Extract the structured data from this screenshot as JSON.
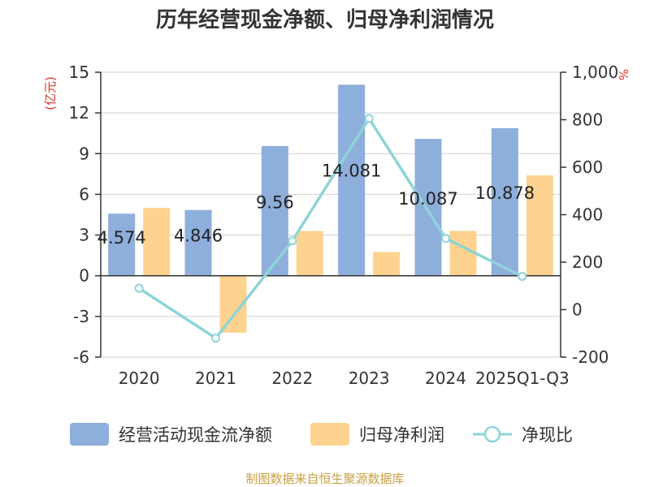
{
  "chart_data": {
    "type": "bar",
    "title": "历年经营现金净额、归母净利润情况",
    "categories": [
      "2020",
      "2021",
      "2022",
      "2023",
      "2024",
      "2025Q1-Q3"
    ],
    "series": [
      {
        "name": "经营活动现金流净额",
        "axis": "left",
        "color": "#8eaedb",
        "values": [
          4.574,
          4.846,
          9.56,
          14.081,
          10.087,
          10.878
        ]
      },
      {
        "name": "归母净利润",
        "axis": "left",
        "color": "#fdd38f",
        "values": [
          5.0,
          -4.2,
          3.3,
          1.75,
          3.3,
          7.4
        ]
      },
      {
        "name": "净现比",
        "axis": "right",
        "color": "#8dd4d8",
        "type": "line",
        "values": [
          90,
          -120,
          290,
          805,
          300,
          140
        ]
      }
    ],
    "data_labels": [
      "4.574",
      "4.846",
      "9.56",
      "14.081",
      "10.087",
      "10.878"
    ],
    "left_axis": {
      "unit": "(亿元)",
      "ylim": [
        -6,
        15
      ],
      "ticks": [
        15,
        12,
        9,
        6,
        3,
        0,
        -3,
        -6
      ],
      "tick_labels": [
        "15",
        "12",
        "9",
        "6",
        "3",
        "0",
        "-3",
        "-6"
      ]
    },
    "right_axis": {
      "unit": "%",
      "ylim": [
        -200,
        1000
      ],
      "ticks": [
        1000,
        800,
        600,
        400,
        200,
        0,
        -200
      ],
      "tick_labels": [
        "1,000",
        "800",
        "600",
        "400",
        "200",
        "0",
        "-200"
      ]
    },
    "grid": true,
    "legend_position": "bottom",
    "source": "制图数据来自恒生聚源数据库"
  }
}
